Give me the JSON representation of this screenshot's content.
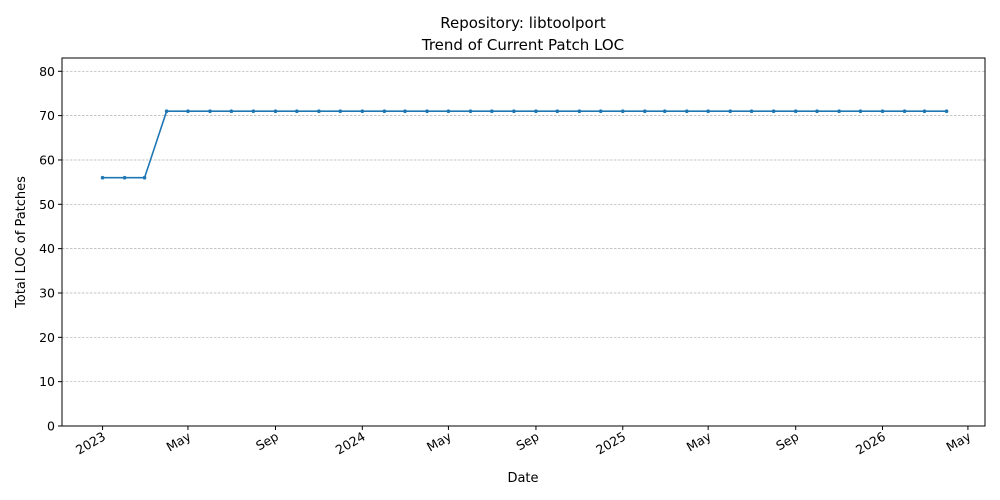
{
  "chart_data": {
    "type": "line",
    "title_line1": "Repository: libtoolport",
    "title_line2": "Trend of Current Patch LOC",
    "xlabel": "Date",
    "ylabel": "Total LOC of Patches",
    "ylim": [
      0,
      83
    ],
    "yticks": [
      0,
      10,
      20,
      30,
      40,
      50,
      60,
      70,
      80
    ],
    "xlim": [
      "2022-11-05",
      "2026-05-25"
    ],
    "xticks": [
      {
        "date": "2023-01-01",
        "label": "2023"
      },
      {
        "date": "2023-05-01",
        "label": "May"
      },
      {
        "date": "2023-09-01",
        "label": "Sep"
      },
      {
        "date": "2024-01-01",
        "label": "2024"
      },
      {
        "date": "2024-05-01",
        "label": "May"
      },
      {
        "date": "2024-09-01",
        "label": "Sep"
      },
      {
        "date": "2025-01-01",
        "label": "2025"
      },
      {
        "date": "2025-05-01",
        "label": "May"
      },
      {
        "date": "2025-09-01",
        "label": "Sep"
      },
      {
        "date": "2026-01-01",
        "label": "2026"
      },
      {
        "date": "2026-05-01",
        "label": "May"
      }
    ],
    "grid": "horizontal",
    "color": "#1f77b4",
    "series": [
      {
        "x": [
          "2023-01-01",
          "2023-02-01",
          "2023-03-01",
          "2023-04-01",
          "2023-05-01",
          "2023-06-01",
          "2023-07-01",
          "2023-08-01",
          "2023-09-01",
          "2023-10-01",
          "2023-11-01",
          "2023-12-01",
          "2024-01-01",
          "2024-02-01",
          "2024-03-01",
          "2024-04-01",
          "2024-05-01",
          "2024-06-01",
          "2024-07-01",
          "2024-08-01",
          "2024-09-01",
          "2024-10-01",
          "2024-11-01",
          "2024-12-01",
          "2025-01-01",
          "2025-02-01",
          "2025-03-01",
          "2025-04-01",
          "2025-05-01",
          "2025-06-01",
          "2025-07-01",
          "2025-08-01",
          "2025-09-01",
          "2025-10-01",
          "2025-11-01",
          "2025-12-01",
          "2026-01-01",
          "2026-02-01",
          "2026-03-01",
          "2026-04-01"
        ],
        "y": [
          56,
          56,
          56,
          71,
          71,
          71,
          71,
          71,
          71,
          71,
          71,
          71,
          71,
          71,
          71,
          71,
          71,
          71,
          71,
          71,
          71,
          71,
          71,
          71,
          71,
          71,
          71,
          71,
          71,
          71,
          71,
          71,
          71,
          71,
          71,
          71,
          71,
          71,
          71,
          71
        ]
      }
    ]
  }
}
